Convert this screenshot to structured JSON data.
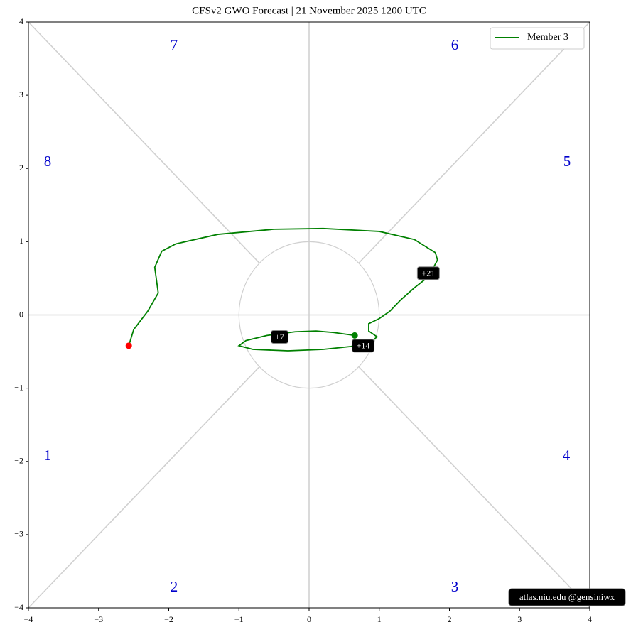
{
  "chart_data": {
    "type": "line",
    "title": "CFSv2 GWO Forecast   |   21  November  2025 1200 UTC",
    "series": [
      {
        "name": "Member 3",
        "color": "#008000",
        "x": [
          0.65,
          0.35,
          0.1,
          -0.2,
          -0.6,
          -0.9,
          -1.0,
          -0.8,
          -0.3,
          0.2,
          0.6,
          0.9,
          0.97,
          0.85,
          0.85,
          1.0,
          1.15,
          1.3,
          1.5,
          1.7,
          1.83,
          1.8,
          1.5,
          1.0,
          0.2,
          -0.5,
          -1.3,
          -1.9,
          -2.1,
          -2.2,
          -2.15,
          -2.3,
          -2.5,
          -2.57
        ],
        "y": [
          -0.28,
          -0.24,
          -0.22,
          -0.23,
          -0.28,
          -0.35,
          -0.42,
          -0.47,
          -0.49,
          -0.47,
          -0.43,
          -0.35,
          -0.3,
          -0.22,
          -0.12,
          -0.05,
          0.05,
          0.2,
          0.37,
          0.52,
          0.75,
          0.85,
          1.03,
          1.14,
          1.18,
          1.17,
          1.1,
          0.97,
          0.87,
          0.65,
          0.3,
          0.05,
          -0.2,
          -0.42
        ]
      }
    ],
    "start_color": "#008000",
    "end_color": "#ff0000",
    "annotations": [
      {
        "text": "+7",
        "x": -0.42,
        "y": -0.3
      },
      {
        "text": "+14",
        "x": 0.77,
        "y": -0.42
      },
      {
        "text": "+21",
        "x": 1.7,
        "y": 0.57
      }
    ],
    "phase_labels": [
      "1",
      "2",
      "3",
      "4",
      "5",
      "6",
      "7",
      "8"
    ],
    "watermark": "atlas.niu.edu  @gensiniwx",
    "xlim": [
      -4,
      4
    ],
    "ylim": [
      -4,
      4
    ],
    "xticks": [
      {
        "value": -4,
        "label": "−4"
      },
      {
        "value": -3,
        "label": "−3"
      },
      {
        "value": -2,
        "label": "−2"
      },
      {
        "value": -1,
        "label": "−1"
      },
      0,
      1,
      2,
      3,
      4
    ],
    "yticks": [
      {
        "value": -4,
        "label": "−4"
      },
      {
        "value": -3,
        "label": "−3"
      },
      {
        "value": -2,
        "label": "−2"
      },
      {
        "value": -1,
        "label": "−1"
      },
      0,
      1,
      2,
      3,
      4
    ],
    "legend": "upper right"
  }
}
